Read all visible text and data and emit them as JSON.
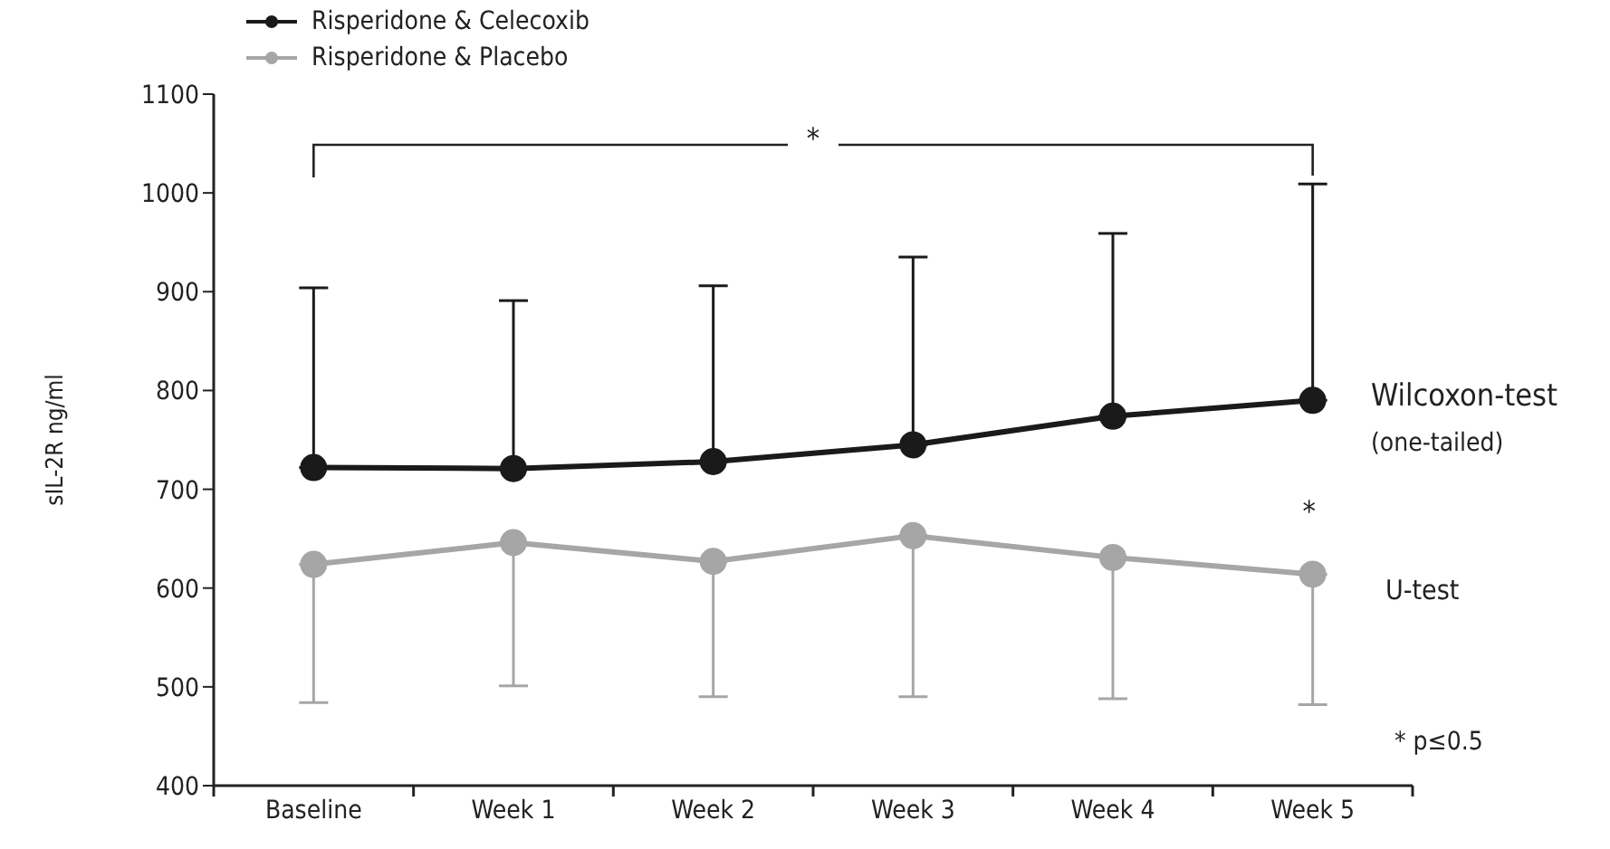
{
  "chart_data": {
    "type": "line",
    "ylabel": "sIL-2R ng/ml",
    "categories": [
      "Baseline",
      "Week 1",
      "Week 2",
      "Week 3",
      "Week 4",
      "Week 5"
    ],
    "series": [
      {
        "name": "Risperidone & Celecoxib",
        "color": "#1a1a1a",
        "values": [
          722,
          721,
          728,
          745,
          774,
          790
        ],
        "errors": [
          [
            722,
            904
          ],
          [
            721,
            891
          ],
          [
            728,
            906
          ],
          [
            745,
            935
          ],
          [
            774,
            959
          ],
          [
            790,
            1009
          ]
        ]
      },
      {
        "name": "Risperidone & Placebo",
        "color": "#a6a6a6",
        "values": [
          624,
          646,
          627,
          653,
          631,
          614
        ],
        "errors": [
          [
            484,
            624
          ],
          [
            501,
            646
          ],
          [
            490,
            627
          ],
          [
            490,
            653
          ],
          [
            488,
            631
          ],
          [
            482,
            614
          ]
        ]
      }
    ],
    "ylim": [
      400,
      1100
    ],
    "yticks": [
      400,
      500,
      600,
      700,
      800,
      900,
      1000,
      1100
    ],
    "annotations": [
      "*",
      "Wilcoxon-test",
      "(one-tailed)",
      "*",
      "U-test",
      "* p≤0.5"
    ],
    "legend": "top left",
    "marker": "circle",
    "line_style": "solid",
    "grid": false
  }
}
